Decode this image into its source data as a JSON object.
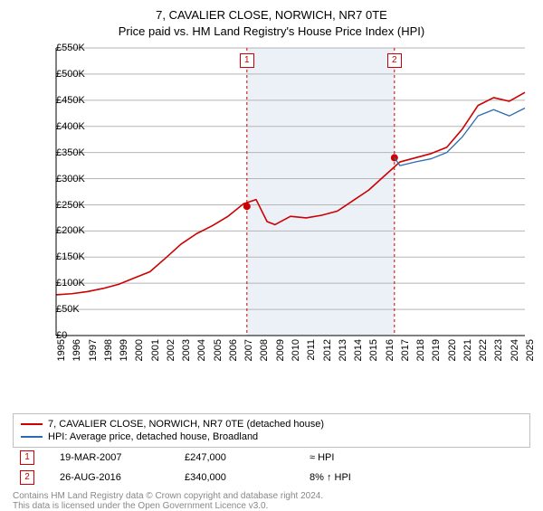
{
  "title_line1": "7, CAVALIER CLOSE, NORWICH, NR7 0TE",
  "title_line2": "Price paid vs. HM Land Registry's House Price Index (HPI)",
  "chart": {
    "type": "line",
    "background_color": "#ffffff",
    "shaded_band_color": "#ecf1f8",
    "grid_color": "#b5b5b5",
    "y_axis": {
      "min": 0,
      "max": 550000,
      "step": 50000,
      "labels": [
        "£0",
        "£50K",
        "£100K",
        "£150K",
        "£200K",
        "£250K",
        "£300K",
        "£350K",
        "£400K",
        "£450K",
        "£500K",
        "£550K"
      ]
    },
    "x_axis": {
      "min": 1995,
      "max": 2025,
      "labels": [
        "1995",
        "1996",
        "1997",
        "1998",
        "1999",
        "2000",
        "2001",
        "2002",
        "2003",
        "2004",
        "2005",
        "2006",
        "2007",
        "2008",
        "2009",
        "2010",
        "2011",
        "2012",
        "2013",
        "2014",
        "2015",
        "2016",
        "2017",
        "2018",
        "2019",
        "2020",
        "2021",
        "2022",
        "2023",
        "2024",
        "2025"
      ]
    },
    "shaded_band": {
      "x_start": 2007.2,
      "x_end": 2016.65
    },
    "series": [
      {
        "name": "property",
        "color": "#cc0000",
        "width": 1.6,
        "points": [
          [
            1995,
            78000
          ],
          [
            1996,
            80000
          ],
          [
            1997,
            84000
          ],
          [
            1998,
            90000
          ],
          [
            1999,
            98000
          ],
          [
            2000,
            110000
          ],
          [
            2001,
            122000
          ],
          [
            2002,
            148000
          ],
          [
            2003,
            175000
          ],
          [
            2004,
            195000
          ],
          [
            2005,
            210000
          ],
          [
            2006,
            228000
          ],
          [
            2007,
            252000
          ],
          [
            2007.8,
            260000
          ],
          [
            2008.5,
            218000
          ],
          [
            2009,
            212000
          ],
          [
            2010,
            228000
          ],
          [
            2011,
            225000
          ],
          [
            2012,
            230000
          ],
          [
            2013,
            238000
          ],
          [
            2014,
            258000
          ],
          [
            2015,
            278000
          ],
          [
            2016,
            305000
          ],
          [
            2017,
            332000
          ],
          [
            2018,
            340000
          ],
          [
            2019,
            348000
          ],
          [
            2020,
            360000
          ],
          [
            2021,
            395000
          ],
          [
            2022,
            440000
          ],
          [
            2023,
            455000
          ],
          [
            2024,
            448000
          ],
          [
            2025,
            465000
          ]
        ]
      },
      {
        "name": "hpi",
        "color": "#2b6cb0",
        "width": 1.3,
        "points": [
          [
            2016.65,
            340000
          ],
          [
            2017,
            325000
          ],
          [
            2018,
            332000
          ],
          [
            2019,
            338000
          ],
          [
            2020,
            350000
          ],
          [
            2021,
            380000
          ],
          [
            2022,
            420000
          ],
          [
            2023,
            432000
          ],
          [
            2024,
            420000
          ],
          [
            2025,
            435000
          ]
        ]
      }
    ],
    "sale_markers": [
      {
        "id": "1",
        "x": 2007.21,
        "y": 247000,
        "line_color": "#cc0000"
      },
      {
        "id": "2",
        "x": 2016.65,
        "y": 340000,
        "line_color": "#cc0000"
      }
    ],
    "marker_dot_color": "#cc0000"
  },
  "legend": {
    "series1_color": "#cc0000",
    "series1_label": "7, CAVALIER CLOSE, NORWICH, NR7 0TE (detached house)",
    "series2_color": "#2b6cb0",
    "series2_label": "HPI: Average price, detached house, Broadland"
  },
  "sales": [
    {
      "id": "1",
      "date": "19-MAR-2007",
      "price": "£247,000",
      "delta": "≈ HPI"
    },
    {
      "id": "2",
      "date": "26-AUG-2016",
      "price": "£340,000",
      "delta": "8% ↑ HPI"
    }
  ],
  "footer1": "Contains HM Land Registry data © Crown copyright and database right 2024.",
  "footer2": "This data is licensed under the Open Government Licence v3.0."
}
